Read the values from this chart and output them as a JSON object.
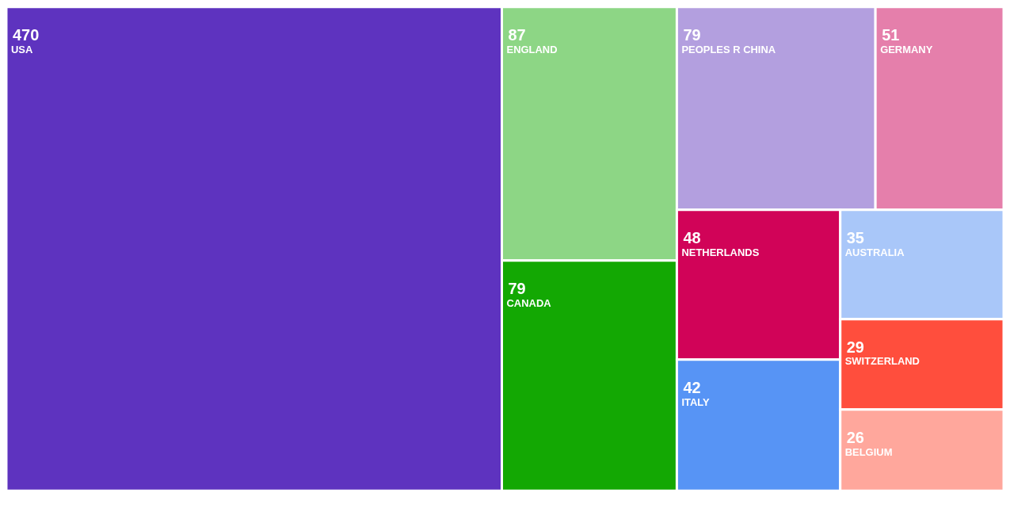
{
  "chart_data": {
    "type": "other",
    "data_labels": true,
    "categories": [
      "USA",
      "ENGLAND",
      "CANADA",
      "PEOPLES R CHINA",
      "GERMANY",
      "NETHERLANDS",
      "ITALY",
      "AUSTRALIA",
      "SWITZERLAND",
      "BELGIUM"
    ],
    "values": [
      470,
      87,
      79,
      79,
      51,
      48,
      42,
      35,
      29,
      26
    ],
    "colors": [
      "#5e33bf",
      "#8dd685",
      "#13a803",
      "#b39fdf",
      "#e57fab",
      "#d10358",
      "#5794f5",
      "#a9c7f9",
      "#ff4e3d",
      "#ffa79c"
    ]
  }
}
